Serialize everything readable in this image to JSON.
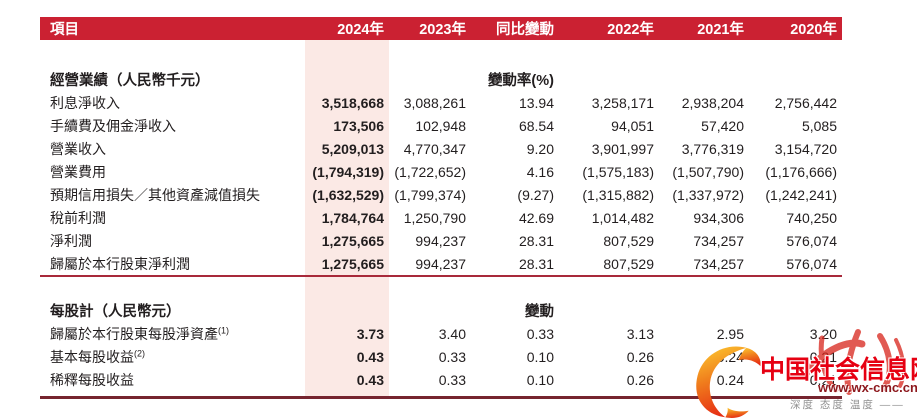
{
  "header": {
    "item_label": "項目",
    "columns": [
      "2024年",
      "2023年",
      "同比變動",
      "2022年",
      "2021年",
      "2020年"
    ]
  },
  "sections": [
    {
      "title": "經營業績（人民幣千元）",
      "change_header": "變動率(%)",
      "rows": [
        {
          "label": "利息淨收入",
          "sup": "",
          "y2024": "3,518,668",
          "y2023": "3,088,261",
          "yoy": "13.94",
          "y2022": "3,258,171",
          "y2021": "2,938,204",
          "y2020": "2,756,442"
        },
        {
          "label": "手續費及佣金淨收入",
          "sup": "",
          "y2024": "173,506",
          "y2023": "102,948",
          "yoy": "68.54",
          "y2022": "94,051",
          "y2021": "57,420",
          "y2020": "5,085"
        },
        {
          "label": "營業收入",
          "sup": "",
          "y2024": "5,209,013",
          "y2023": "4,770,347",
          "yoy": "9.20",
          "y2022": "3,901,997",
          "y2021": "3,776,319",
          "y2020": "3,154,720"
        },
        {
          "label": "營業費用",
          "sup": "",
          "y2024": "(1,794,319)",
          "y2023": "(1,722,652)",
          "yoy": "4.16",
          "y2022": "(1,575,183)",
          "y2021": "(1,507,790)",
          "y2020": "(1,176,666)"
        },
        {
          "label": "預期信用損失／其他資產減值損失",
          "sup": "",
          "y2024": "(1,632,529)",
          "y2023": "(1,799,374)",
          "yoy": "(9.27)",
          "y2022": "(1,315,882)",
          "y2021": "(1,337,972)",
          "y2020": "(1,242,241)"
        },
        {
          "label": "稅前利潤",
          "sup": "",
          "y2024": "1,784,764",
          "y2023": "1,250,790",
          "yoy": "42.69",
          "y2022": "1,014,482",
          "y2021": "934,306",
          "y2020": "740,250"
        },
        {
          "label": "淨利潤",
          "sup": "",
          "y2024": "1,275,665",
          "y2023": "994,237",
          "yoy": "28.31",
          "y2022": "807,529",
          "y2021": "734,257",
          "y2020": "576,074"
        },
        {
          "label": "歸屬於本行股東淨利潤",
          "sup": "",
          "y2024": "1,275,665",
          "y2023": "994,237",
          "yoy": "28.31",
          "y2022": "807,529",
          "y2021": "734,257",
          "y2020": "576,074"
        }
      ]
    },
    {
      "title": "每股計（人民幣元）",
      "change_header": "變動",
      "rows": [
        {
          "label": "歸屬於本行股東每股淨資產",
          "sup": "(1)",
          "y2024": "3.73",
          "y2023": "3.40",
          "yoy": "0.33",
          "y2022": "3.13",
          "y2021": "2.95",
          "y2020": "3.20"
        },
        {
          "label": "基本每股收益",
          "sup": "(2)",
          "y2024": "0.43",
          "y2023": "0.33",
          "yoy": "0.10",
          "y2022": "0.26",
          "y2021": "0.24",
          "y2020": "0.21"
        },
        {
          "label": "稀釋每股收益",
          "sup": "",
          "y2024": "0.43",
          "y2023": "0.33",
          "yoy": "0.10",
          "y2022": "0.26",
          "y2021": "0.24",
          "y2020": "0.21"
        }
      ]
    }
  ],
  "watermark": {
    "site_name": "中国社会信息网",
    "url": "www.wx-cmc.cn",
    "url_prefix": "www",
    "tagline": "深度 态度 温度 ——",
    "logo": "flame-phoenix-logo"
  },
  "colors": {
    "header_red": "#cb2132",
    "highlight_pink": "#fbe9e5",
    "text_ink": "#221e1f",
    "separator_red": "#a8293a",
    "bottom_line": "#76242f",
    "watermark_red": "#e60012",
    "watermark_url_red": "#8d181d",
    "watermark_gray": "#909090"
  }
}
